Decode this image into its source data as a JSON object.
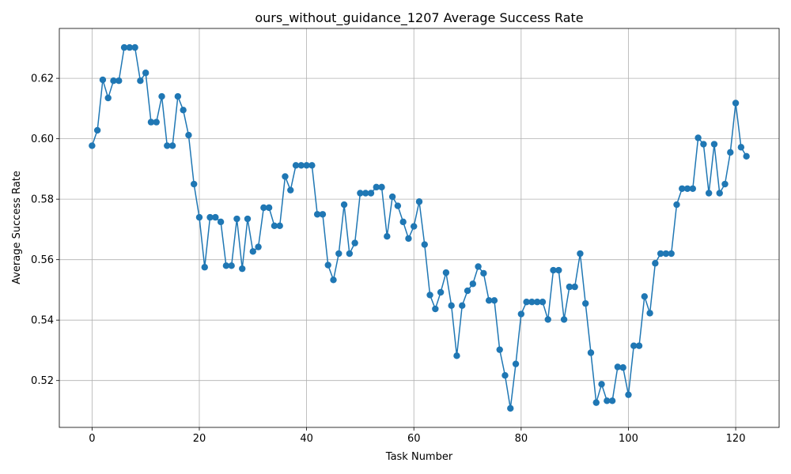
{
  "chart_data": {
    "type": "line",
    "title": "ours_without_guidance_1207 Average Success Rate",
    "xlabel": "Task Number",
    "ylabel": "Average Success Rate",
    "xlim": [
      -6.1,
      128.1
    ],
    "ylim": [
      0.5045,
      0.6365
    ],
    "xticks": [
      0,
      20,
      40,
      60,
      80,
      100,
      120
    ],
    "xtick_labels": [
      "0",
      "20",
      "40",
      "60",
      "80",
      "100",
      "120"
    ],
    "yticks": [
      0.52,
      0.54,
      0.56,
      0.58,
      0.6,
      0.62
    ],
    "ytick_labels": [
      "0.52",
      "0.54",
      "0.56",
      "0.58",
      "0.60",
      "0.62"
    ],
    "grid": true,
    "color": "#1f77b4",
    "series": [
      {
        "x": [
          0,
          1,
          2,
          3,
          4,
          5,
          6,
          7,
          8,
          9,
          10,
          11,
          12,
          13,
          14,
          15,
          16,
          17,
          18,
          19,
          20,
          21,
          22,
          23,
          24,
          25,
          26,
          27,
          28,
          29,
          30,
          31,
          32,
          33,
          34,
          35,
          36,
          37,
          38,
          39,
          40,
          41,
          42,
          43,
          44,
          45,
          46,
          47,
          48,
          49,
          50,
          51,
          52,
          53,
          54,
          55,
          56,
          57,
          58,
          59,
          60,
          61,
          62,
          63,
          64,
          65,
          66,
          67,
          68,
          69,
          70,
          71,
          72,
          73,
          74,
          75,
          76,
          77,
          78,
          79,
          80,
          81,
          82,
          83,
          84,
          85,
          86,
          87,
          88,
          89,
          90,
          91,
          92,
          93,
          94,
          95,
          96,
          97,
          98,
          99,
          100,
          101,
          102,
          103,
          104,
          105,
          106,
          107,
          108,
          109,
          110,
          111,
          112,
          113,
          114,
          115,
          116,
          117,
          118,
          119,
          120,
          121,
          122
        ],
        "values": [
          0.5977,
          0.6028,
          0.6195,
          0.6135,
          0.6192,
          0.6192,
          0.6302,
          0.6302,
          0.6302,
          0.6192,
          0.6218,
          0.6055,
          0.6055,
          0.614,
          0.5977,
          0.5977,
          0.614,
          0.6095,
          0.6012,
          0.585,
          0.574,
          0.5575,
          0.574,
          0.574,
          0.5725,
          0.558,
          0.558,
          0.5735,
          0.557,
          0.5735,
          0.5627,
          0.5642,
          0.5772,
          0.5772,
          0.5712,
          0.5712,
          0.5875,
          0.583,
          0.5912,
          0.5912,
          0.5912,
          0.5912,
          0.575,
          0.575,
          0.5582,
          0.5533,
          0.562,
          0.5782,
          0.562,
          0.5655,
          0.582,
          0.582,
          0.582,
          0.584,
          0.584,
          0.5677,
          0.5808,
          0.5778,
          0.5725,
          0.567,
          0.571,
          0.5792,
          0.565,
          0.5483,
          0.5437,
          0.5492,
          0.5557,
          0.5448,
          0.5282,
          0.5448,
          0.5497,
          0.552,
          0.5577,
          0.5555,
          0.5465,
          0.5465,
          0.5302,
          0.5217,
          0.5108,
          0.5255,
          0.542,
          0.546,
          0.546,
          0.546,
          0.546,
          0.5402,
          0.5565,
          0.5565,
          0.5402,
          0.551,
          0.551,
          0.562,
          0.5455,
          0.5292,
          0.5127,
          0.5188,
          0.5133,
          0.5133,
          0.5245,
          0.5243,
          0.5153,
          0.5315,
          0.5315,
          0.5478,
          0.5423,
          0.5588,
          0.562,
          0.562,
          0.562,
          0.5782,
          0.5835,
          0.5835,
          0.5835,
          0.6003,
          0.5982,
          0.582,
          0.5982,
          0.582,
          0.585,
          0.5955,
          0.6118,
          0.5972,
          0.5942
        ]
      }
    ]
  }
}
